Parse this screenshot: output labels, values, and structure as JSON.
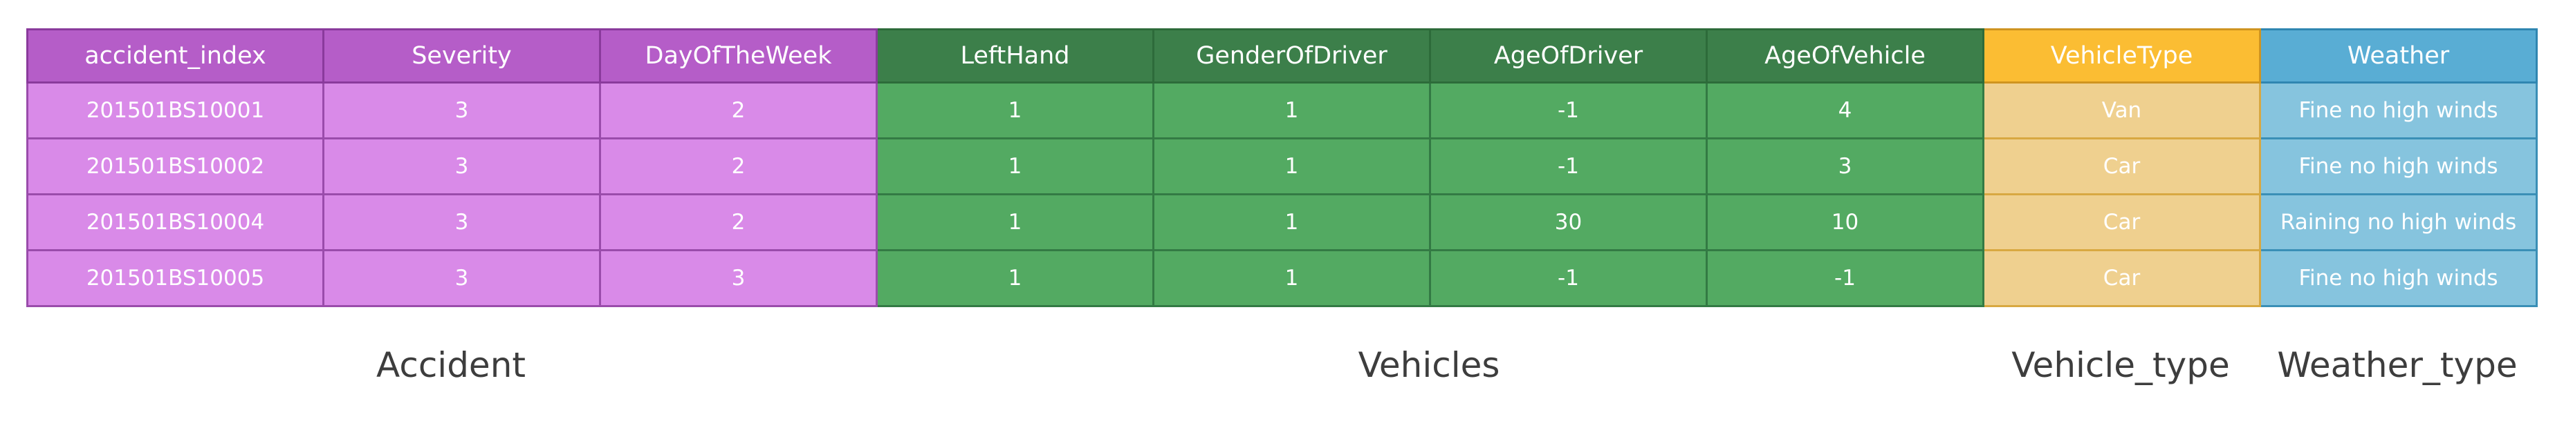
{
  "columns": [
    {
      "label": "accident_index",
      "group": "accident"
    },
    {
      "label": "Severity",
      "group": "accident"
    },
    {
      "label": "DayOfTheWeek",
      "group": "accident"
    },
    {
      "label": "LeftHand",
      "group": "vehicles"
    },
    {
      "label": "GenderOfDriver",
      "group": "vehicles"
    },
    {
      "label": "AgeOfDriver",
      "group": "vehicles"
    },
    {
      "label": "AgeOfVehicle",
      "group": "vehicles"
    },
    {
      "label": "VehicleType",
      "group": "vtype"
    },
    {
      "label": "Weather",
      "group": "weather"
    }
  ],
  "rows": [
    [
      "201501BS10001",
      "3",
      "2",
      "1",
      "1",
      "-1",
      "4",
      "Van",
      "Fine no high winds"
    ],
    [
      "201501BS10002",
      "3",
      "2",
      "1",
      "1",
      "-1",
      "3",
      "Car",
      "Fine no high winds"
    ],
    [
      "201501BS10004",
      "3",
      "2",
      "1",
      "1",
      "30",
      "10",
      "Car",
      "Raining no high winds"
    ],
    [
      "201501BS10005",
      "3",
      "3",
      "1",
      "1",
      "-1",
      "-1",
      "Car",
      "Fine no high winds"
    ]
  ],
  "groups": [
    {
      "key": "accident",
      "label": "Accident"
    },
    {
      "key": "vehicles",
      "label": "Vehicles"
    },
    {
      "key": "vtype",
      "label": "Vehicle_type"
    },
    {
      "key": "weather",
      "label": "Weather_type"
    }
  ],
  "colors": {
    "accident_header": "#b55dc8",
    "accident_cell": "#d98ae8",
    "vehicles_header": "#3c7f4a",
    "vehicles_cell": "#53aa62",
    "vehicle_type_header": "#fbbd33",
    "vehicle_type_cell": "#efd08f",
    "weather_header": "#59add4",
    "weather_cell": "#86c4de"
  }
}
